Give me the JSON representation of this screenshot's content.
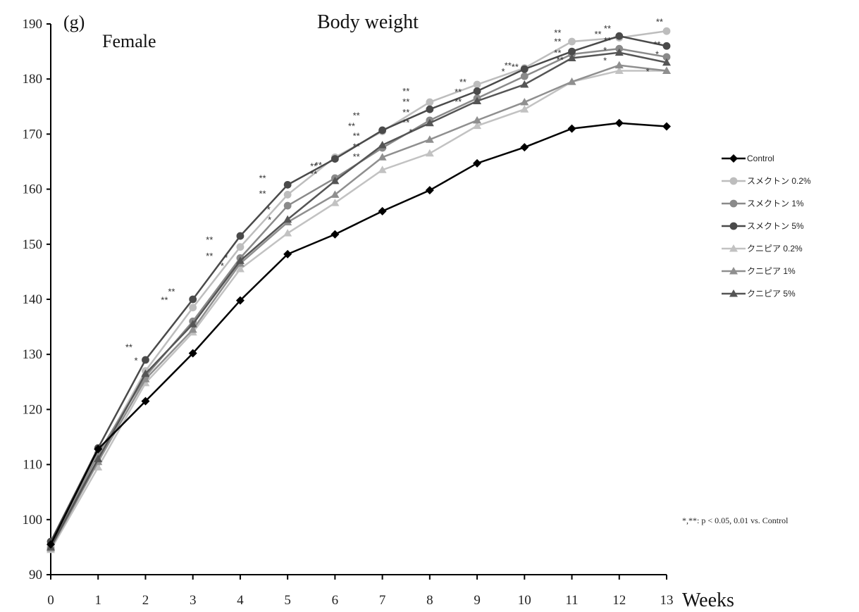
{
  "chart_data": {
    "type": "line",
    "panel_label": "(g)",
    "subtitle": "Female",
    "title": "Body weight",
    "xlabel": "Weeks",
    "ylabel": "",
    "x": [
      0,
      1,
      2,
      3,
      4,
      5,
      6,
      7,
      8,
      9,
      10,
      11,
      12,
      13
    ],
    "xlim": [
      0,
      13
    ],
    "ylim": [
      90,
      190
    ],
    "yticks": [
      90,
      100,
      110,
      120,
      130,
      140,
      150,
      160,
      170,
      180,
      190
    ],
    "grid": false,
    "legend_position": "right",
    "note": "*,**: p < 0.05, 0.01 vs. Control",
    "series": [
      {
        "name": "Control",
        "marker": "diamond",
        "color": "#000000",
        "values": [
          95.5,
          112.8,
          121.5,
          130.2,
          139.8,
          148.2,
          151.8,
          156.0,
          159.8,
          164.7,
          167.6,
          171.0,
          172.0,
          171.4
        ]
      },
      {
        "name": "スメクトン 0.2%",
        "marker": "circle",
        "color": "#bdbdbd",
        "values": [
          95.2,
          111.5,
          127.0,
          138.5,
          149.5,
          159.0,
          165.8,
          170.5,
          175.8,
          179.0,
          182.0,
          186.8,
          187.5,
          188.7
        ]
      },
      {
        "name": "スメクトン 1%",
        "marker": "circle",
        "color": "#8a8a8a",
        "values": [
          94.8,
          112.0,
          126.0,
          136.0,
          147.5,
          157.0,
          162.0,
          167.5,
          172.5,
          176.5,
          180.5,
          184.5,
          185.5,
          184.0
        ]
      },
      {
        "name": "スメクトン 5%",
        "marker": "circle",
        "color": "#4a4a4a",
        "values": [
          96.0,
          113.0,
          129.0,
          140.0,
          151.5,
          160.8,
          165.5,
          170.7,
          174.5,
          177.8,
          181.8,
          185.0,
          187.8,
          186.0
        ]
      },
      {
        "name": "クニピア 0.2%",
        "marker": "triangle",
        "color": "#c2c2c2",
        "values": [
          94.5,
          109.5,
          124.8,
          134.0,
          145.5,
          152.0,
          157.5,
          163.5,
          166.5,
          171.5,
          174.5,
          179.5,
          181.5,
          181.5
        ]
      },
      {
        "name": "クニピア 1%",
        "marker": "triangle",
        "color": "#8f8f8f",
        "values": [
          94.8,
          110.5,
          125.5,
          134.5,
          146.5,
          154.0,
          159.0,
          165.8,
          169.0,
          172.5,
          175.8,
          179.5,
          182.5,
          181.5
        ]
      },
      {
        "name": "クニピア 5%",
        "marker": "triangle",
        "color": "#555555",
        "values": [
          95.0,
          111.0,
          126.5,
          135.5,
          147.0,
          154.5,
          161.5,
          168.0,
          172.0,
          176.0,
          179.0,
          183.8,
          184.8,
          183.0
        ]
      }
    ],
    "annotations": [
      {
        "text": "**",
        "x": 1.65,
        "y": 130.7
      },
      {
        "text": "*",
        "x": 1.8,
        "y": 128.3
      },
      {
        "text": "**",
        "x": 2.55,
        "y": 140.8
      },
      {
        "text": "**",
        "x": 2.4,
        "y": 139.3
      },
      {
        "text": "**",
        "x": 3.35,
        "y": 150.2
      },
      {
        "text": "**",
        "x": 3.35,
        "y": 147.3
      },
      {
        "text": "*",
        "x": 3.7,
        "y": 147.0
      },
      {
        "text": "*",
        "x": 3.62,
        "y": 145.5
      },
      {
        "text": "**",
        "x": 4.47,
        "y": 161.4
      },
      {
        "text": "**",
        "x": 4.47,
        "y": 158.6
      },
      {
        "text": "*",
        "x": 4.6,
        "y": 155.7
      },
      {
        "text": "*",
        "x": 4.62,
        "y": 153.9
      },
      {
        "text": "**",
        "x": 5.55,
        "y": 163.6
      },
      {
        "text": "**",
        "x": 5.65,
        "y": 163.8
      },
      {
        "text": "**",
        "x": 5.55,
        "y": 162.2
      },
      {
        "text": "**",
        "x": 6.45,
        "y": 172.8
      },
      {
        "text": "**",
        "x": 6.35,
        "y": 170.9
      },
      {
        "text": "**",
        "x": 6.45,
        "y": 169.1
      },
      {
        "text": "**",
        "x": 6.45,
        "y": 167.2
      },
      {
        "text": "**",
        "x": 6.45,
        "y": 165.3
      },
      {
        "text": "**",
        "x": 7.5,
        "y": 177.2
      },
      {
        "text": "**",
        "x": 7.5,
        "y": 175.3
      },
      {
        "text": "**",
        "x": 7.5,
        "y": 173.4
      },
      {
        "text": "**",
        "x": 7.5,
        "y": 171.5
      },
      {
        "text": "*",
        "x": 7.6,
        "y": 169.8
      },
      {
        "text": "**",
        "x": 8.7,
        "y": 178.9
      },
      {
        "text": "**",
        "x": 8.6,
        "y": 177.1
      },
      {
        "text": "**",
        "x": 8.6,
        "y": 175.3
      },
      {
        "text": "**",
        "x": 9.65,
        "y": 181.9
      },
      {
        "text": "**",
        "x": 9.8,
        "y": 181.6
      },
      {
        "text": "*",
        "x": 9.55,
        "y": 180.8
      },
      {
        "text": "**",
        "x": 10.7,
        "y": 187.8
      },
      {
        "text": "**",
        "x": 10.7,
        "y": 186.2
      },
      {
        "text": "**",
        "x": 10.7,
        "y": 184.2
      },
      {
        "text": "**",
        "x": 10.75,
        "y": 182.9
      },
      {
        "text": "**",
        "x": 11.55,
        "y": 187.6
      },
      {
        "text": "**",
        "x": 11.75,
        "y": 188.6
      },
      {
        "text": "**",
        "x": 11.75,
        "y": 186.4
      },
      {
        "text": "*",
        "x": 11.7,
        "y": 184.6
      },
      {
        "text": "*",
        "x": 11.7,
        "y": 182.8
      },
      {
        "text": "**",
        "x": 12.85,
        "y": 189.8
      },
      {
        "text": "**",
        "x": 12.8,
        "y": 185.7
      },
      {
        "text": "*",
        "x": 12.8,
        "y": 183.9
      },
      {
        "text": "*",
        "x": 12.6,
        "y": 180.8
      }
    ]
  }
}
